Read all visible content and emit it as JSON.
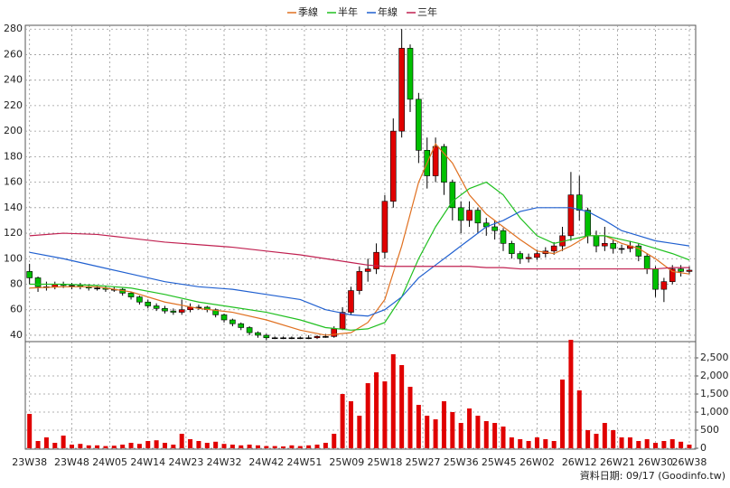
{
  "chart_data": {
    "type": "candlestick",
    "legend": "top",
    "grid": true,
    "xlim": [
      -1,
      157.5
    ],
    "xticks": [
      {
        "value": 0,
        "label": "23W38"
      },
      {
        "value": 10,
        "label": "23W48"
      },
      {
        "value": 19,
        "label": "24W05"
      },
      {
        "value": 28,
        "label": "24W14"
      },
      {
        "value": 37,
        "label": "24W23"
      },
      {
        "value": 46,
        "label": "24W32"
      },
      {
        "value": 56,
        "label": "24W42"
      },
      {
        "value": 65,
        "label": "24W51"
      },
      {
        "value": 75,
        "label": "25W09"
      },
      {
        "value": 84,
        "label": "25W18"
      },
      {
        "value": 93,
        "label": "25W27"
      },
      {
        "value": 102,
        "label": "25W36"
      },
      {
        "value": 111,
        "label": "25W45"
      },
      {
        "value": 120,
        "label": "26W02"
      },
      {
        "value": 130,
        "label": "26W12"
      },
      {
        "value": 139,
        "label": "26W21"
      },
      {
        "value": 148,
        "label": "26W30"
      },
      {
        "value": 156,
        "label": "26W38"
      }
    ],
    "ylim": [
      35,
      283
    ],
    "yticks": [
      40,
      60,
      80,
      100,
      120,
      140,
      160,
      180,
      200,
      220,
      240,
      260,
      280
    ],
    "y2lim": [
      0,
      2950
    ],
    "y2ticks": [
      0,
      500,
      {
        "value": 1000,
        "label": "1,000"
      },
      {
        "value": 1500,
        "label": "1,500"
      },
      {
        "value": 2000,
        "label": "2,000"
      },
      {
        "value": 2500,
        "label": "2,500"
      }
    ],
    "up_color": "#e00000",
    "down_color": "#00c000",
    "volume_color": "#e00000",
    "candles": {
      "x": [
        0,
        2,
        4,
        6,
        8,
        10,
        12,
        14,
        16,
        18,
        20,
        22,
        24,
        26,
        28,
        30,
        32,
        34,
        36,
        38,
        40,
        42,
        44,
        46,
        48,
        50,
        52,
        54,
        56,
        58,
        60,
        62,
        64,
        66,
        68,
        70,
        72,
        74,
        76,
        78,
        80,
        82,
        84,
        86,
        88,
        90,
        92,
        94,
        96,
        98,
        100,
        102,
        104,
        106,
        108,
        110,
        112,
        114,
        116,
        118,
        120,
        122,
        124,
        126,
        128,
        130,
        132,
        134,
        136,
        138,
        140,
        142,
        144,
        146,
        148,
        150,
        152,
        154,
        156
      ],
      "open": [
        90,
        85,
        78,
        78,
        80,
        79,
        79,
        78,
        77,
        77,
        76,
        76,
        73,
        70,
        66,
        63,
        61,
        59,
        58,
        60,
        62,
        62,
        60,
        56,
        52,
        49,
        46,
        42,
        40,
        38,
        38,
        38,
        38,
        38,
        38,
        39,
        39,
        45,
        58,
        75,
        90,
        92,
        105,
        145,
        200,
        265,
        225,
        185,
        165,
        188,
        160,
        140,
        130,
        138,
        128,
        125,
        122,
        112,
        104,
        100,
        101,
        104,
        106,
        110,
        118,
        150,
        138,
        118,
        110,
        112,
        108,
        108,
        110,
        102,
        92,
        76,
        82,
        92,
        90
      ],
      "high": [
        96,
        86,
        82,
        82,
        82,
        81,
        81,
        80,
        79,
        79,
        78,
        77,
        74,
        71,
        68,
        65,
        63,
        61,
        68,
        65,
        64,
        63,
        61,
        57,
        53,
        50,
        47,
        43,
        41,
        39,
        39,
        39,
        39,
        40,
        40,
        41,
        47,
        62,
        78,
        94,
        100,
        112,
        150,
        210,
        280,
        268,
        230,
        195,
        195,
        190,
        162,
        145,
        145,
        140,
        132,
        130,
        124,
        114,
        106,
        104,
        107,
        109,
        113,
        125,
        168,
        165,
        140,
        122,
        125,
        115,
        111,
        114,
        112,
        104,
        94,
        85,
        95,
        95,
        94
      ],
      "low": [
        80,
        74,
        75,
        76,
        77,
        76,
        76,
        75,
        75,
        74,
        74,
        71,
        68,
        64,
        61,
        59,
        57,
        56,
        56,
        58,
        60,
        58,
        54,
        50,
        47,
        44,
        40,
        38,
        36,
        37,
        37,
        37,
        37,
        37,
        37,
        38,
        38,
        44,
        56,
        72,
        82,
        88,
        100,
        140,
        195,
        215,
        175,
        155,
        160,
        150,
        130,
        120,
        125,
        120,
        118,
        115,
        106,
        100,
        96,
        97,
        99,
        101,
        103,
        106,
        114,
        130,
        112,
        105,
        106,
        104,
        104,
        105,
        98,
        88,
        70,
        66,
        80,
        86,
        88
      ],
      "close": [
        85,
        78,
        78,
        80,
        79,
        79,
        78,
        77,
        77,
        76,
        76,
        73,
        70,
        66,
        63,
        61,
        59,
        58,
        60,
        62,
        62,
        60,
        56,
        52,
        49,
        46,
        42,
        40,
        38,
        38,
        38,
        38,
        38,
        38,
        39,
        39,
        45,
        58,
        75,
        90,
        92,
        105,
        145,
        200,
        265,
        225,
        185,
        165,
        188,
        160,
        140,
        130,
        138,
        128,
        125,
        122,
        112,
        104,
        100,
        101,
        104,
        106,
        110,
        118,
        150,
        138,
        118,
        110,
        112,
        108,
        108,
        110,
        102,
        92,
        76,
        82,
        92,
        90,
        91
      ],
      "volume": [
        950,
        200,
        300,
        150,
        350,
        100,
        120,
        80,
        80,
        60,
        70,
        100,
        150,
        120,
        200,
        220,
        150,
        100,
        400,
        250,
        200,
        150,
        180,
        120,
        100,
        80,
        100,
        80,
        60,
        60,
        50,
        80,
        60,
        80,
        100,
        150,
        400,
        1500,
        1300,
        900,
        1800,
        2100,
        1850,
        2600,
        2300,
        1700,
        1200,
        900,
        800,
        1300,
        1000,
        700,
        1100,
        900,
        750,
        700,
        600,
        300,
        250,
        200,
        300,
        250,
        200,
        1900,
        3000,
        1600,
        500,
        400,
        700,
        500,
        300,
        300,
        200,
        250,
        150,
        200,
        250,
        180,
        100
      ]
    },
    "ma_x": [
      0,
      8,
      16,
      24,
      32,
      40,
      48,
      56,
      64,
      70,
      76,
      80,
      84,
      88,
      92,
      96,
      100,
      104,
      108,
      112,
      116,
      120,
      124,
      128,
      132,
      136,
      140,
      144,
      148,
      152,
      156
    ],
    "series": [
      {
        "name": "季線",
        "color": "#e07020",
        "values": [
          77,
          78,
          78,
          74,
          66,
          61,
          58,
          52,
          44,
          40,
          42,
          50,
          68,
          110,
          160,
          190,
          175,
          150,
          135,
          125,
          115,
          106,
          104,
          110,
          118,
          118,
          112,
          108,
          100,
          90,
          88
        ]
      },
      {
        "name": "半年",
        "color": "#20c020",
        "values": [
          80,
          80,
          79,
          77,
          72,
          66,
          62,
          58,
          52,
          46,
          44,
          45,
          50,
          70,
          100,
          125,
          145,
          155,
          160,
          150,
          132,
          118,
          112,
          115,
          118,
          118,
          115,
          112,
          108,
          104,
          99
        ]
      },
      {
        "name": "年線",
        "color": "#2060d0",
        "values": [
          105,
          100,
          94,
          88,
          82,
          78,
          76,
          72,
          68,
          60,
          56,
          55,
          60,
          70,
          85,
          95,
          105,
          115,
          125,
          130,
          137,
          140,
          140,
          140,
          137,
          130,
          122,
          118,
          114,
          112,
          110
        ]
      },
      {
        "name": "三年",
        "color": "#c02050",
        "values": [
          118,
          120,
          119,
          116,
          113,
          111,
          109,
          106,
          103,
          100,
          97,
          95,
          94,
          94,
          94,
          94,
          94,
          94,
          93,
          93,
          92,
          92,
          92,
          92,
          92,
          92,
          92,
          92,
          92,
          93,
          93
        ]
      }
    ],
    "annotation": "資料日期: 09/17  (Goodinfo.tw)"
  }
}
